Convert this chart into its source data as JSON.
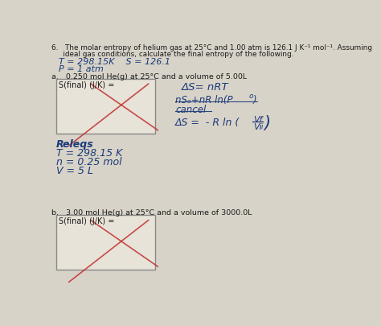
{
  "bg_color": "#d8d3c8",
  "box_color": "#cdc8be",
  "white_box": "#e8e4dc",
  "dark": "#1a1a1a",
  "blue": "#1a3a7a",
  "red": "#c03030",
  "figsize": [
    4.74,
    4.05
  ],
  "dpi": 100,
  "title1": "6.   The molar entropy of helium gas at 25°C and 1.00 atm is 126.1 J K⁻¹ mol⁻¹. Assuming",
  "title2": "     ideal gas conditions, calculate the final entropy of the following.",
  "hand1": "    T = 298.15K   S = 126.1",
  "hand2": "    P = 1 atm",
  "part_a": "a.   0.250 mol He(g) at 25°C and a volume of 5.00L",
  "box_a_text": "S(final) (J/K) =",
  "releqs": "Releqs",
  "t_line": "T = 298.15 K",
  "n_line": "n = 0.25 mol",
  "v_line": "V = 5 L",
  "part_b": "b.   3.00 mol He(g) at 25°C and a volume of 3000.0L",
  "box_b_text": "S(final) (J/K) ="
}
